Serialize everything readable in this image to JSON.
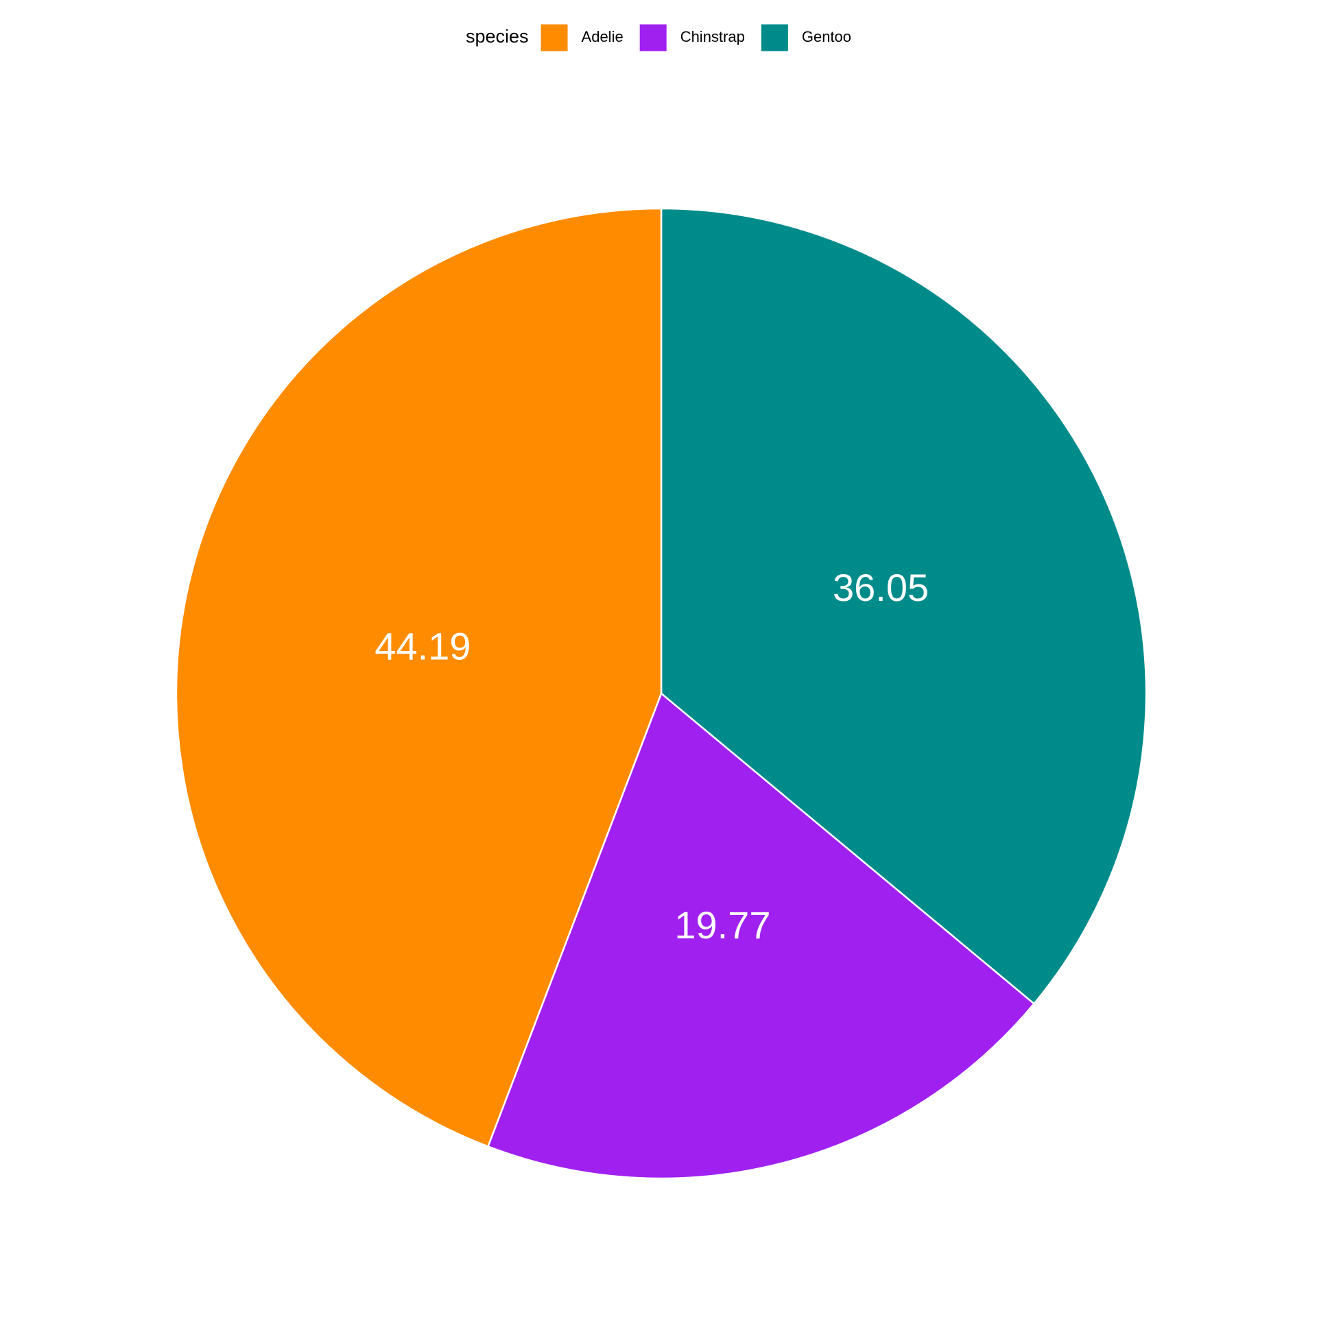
{
  "chart_data": {
    "type": "pie",
    "legend_title": "species",
    "legend_position": "top",
    "categories": [
      "Adelie",
      "Chinstrap",
      "Gentoo"
    ],
    "values": [
      44.19,
      19.77,
      36.05
    ],
    "colors": [
      "#ff8c00",
      "#a020f0",
      "#008b8b"
    ]
  }
}
